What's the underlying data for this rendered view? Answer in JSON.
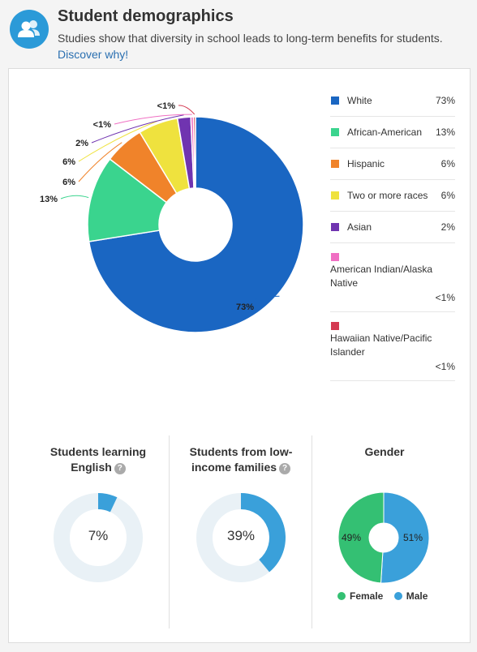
{
  "header": {
    "title": "Student demographics",
    "subtitle": "Studies show that diversity in school leads to long-term benefits for students.",
    "link": "Discover why!",
    "icon": "users-icon"
  },
  "chart_data": [
    {
      "type": "pie",
      "categories": [
        "White",
        "African-American",
        "Hispanic",
        "Two or more races",
        "Asian",
        "American Indian/Alaska Native",
        "Hawaiian Native/Pacific Islander"
      ],
      "values": [
        73,
        13,
        6,
        6,
        2,
        0.4,
        0.3
      ],
      "value_labels": [
        "73%",
        "13%",
        "6%",
        "6%",
        "2%",
        "<1%",
        "<1%"
      ],
      "colors": [
        "#1a66c2",
        "#3ad48e",
        "#f0832a",
        "#efe23e",
        "#7034b0",
        "#f06fc3",
        "#d43a52"
      ],
      "legend_position": "right"
    },
    {
      "type": "pie",
      "title": "Students learning English",
      "values": [
        7
      ],
      "value_label": "7%"
    },
    {
      "type": "pie",
      "title": "Students from low-income families",
      "values": [
        39
      ],
      "value_label": "39%"
    },
    {
      "type": "pie",
      "title": "Gender",
      "categories": [
        "Female",
        "Male"
      ],
      "values": [
        49,
        51
      ],
      "value_labels": [
        "49%",
        "51%"
      ],
      "colors": [
        "#34c073",
        "#3aa0da"
      ],
      "legend_position": "bottom"
    }
  ],
  "stats": {
    "english": {
      "title_line1": "Students learning",
      "title_line2": "English",
      "value": "7%"
    },
    "income": {
      "title_line1": "Students from low-",
      "title_line2": "income families",
      "value": "39%"
    },
    "gender": {
      "title": "Gender",
      "female_label": "Female",
      "male_label": "Male",
      "female_value": "49%",
      "male_value": "51%"
    },
    "help_glyph": "?"
  },
  "colors": {
    "ring_track": "#e9f1f6",
    "ring_fill": "#3aa0da",
    "female": "#34c073",
    "male": "#3aa0da"
  }
}
